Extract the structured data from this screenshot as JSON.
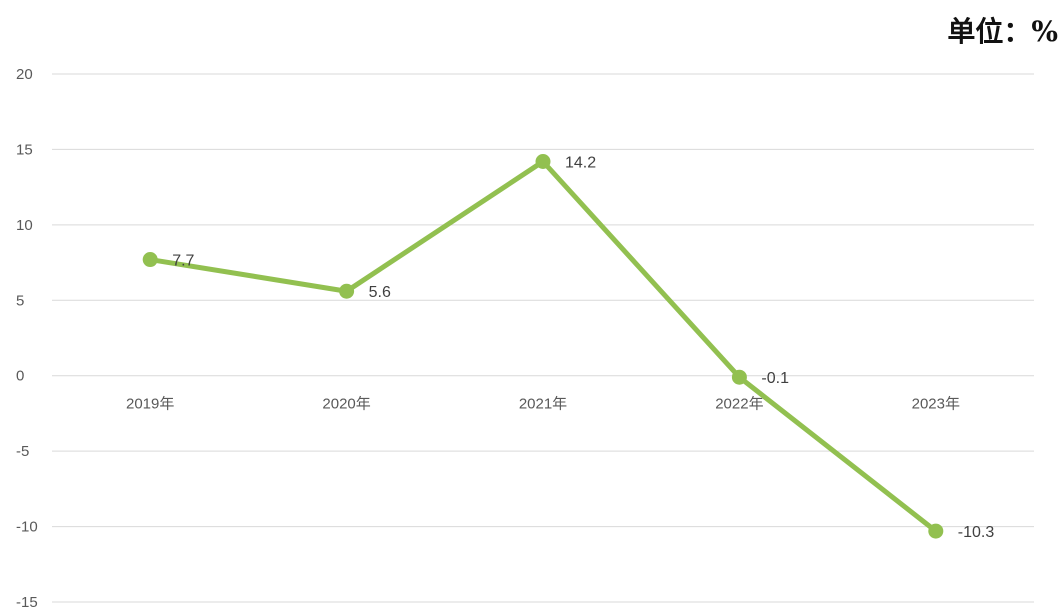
{
  "unit_label": "单位：%",
  "chart_data": {
    "type": "line",
    "categories": [
      "2019年",
      "2020年",
      "2021年",
      "2022年",
      "2023年"
    ],
    "values": [
      7.7,
      5.6,
      14.2,
      -0.1,
      -10.3
    ],
    "data_labels": [
      "7.7",
      "5.6",
      "14.2",
      "-0.1",
      "-10.3"
    ],
    "ylim": [
      -15,
      20
    ],
    "yticks": [
      20,
      15,
      10,
      5,
      0,
      -5,
      -10,
      -15
    ],
    "ytick_labels": [
      "20",
      "15",
      "10",
      "5",
      "0",
      "-5",
      "-10",
      "-15"
    ],
    "grid": true,
    "line_color": "#92c050",
    "title": "",
    "xlabel": "",
    "ylabel": ""
  }
}
